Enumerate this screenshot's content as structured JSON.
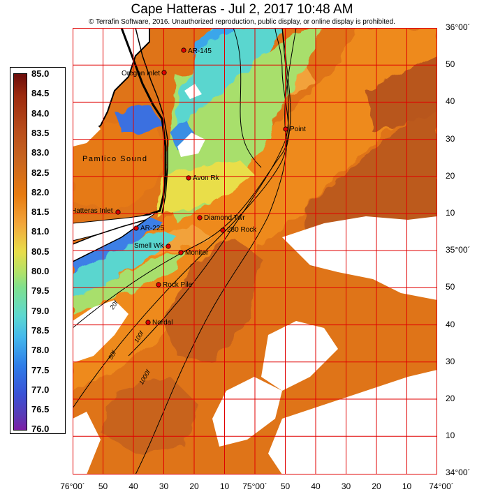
{
  "header": {
    "title": "Cape Hatteras - Jul 2, 2017 10:48 AM",
    "copyright": "© Terrafin Software,  2016.  Unauthorized reproduction, public display, or online display is prohibited."
  },
  "legend": {
    "labels": [
      "85.0",
      "84.5",
      "84.0",
      "83.5",
      "83.0",
      "82.5",
      "82.0",
      "81.5",
      "81.0",
      "80.5",
      "80.0",
      "79.5",
      "79.0",
      "78.5",
      "78.0",
      "77.5",
      "77.0",
      "76.5",
      "76.0"
    ]
  },
  "axes": {
    "lat_labels": [
      "36°00´",
      "50",
      "40",
      "30",
      "20",
      "10",
      "35°00´",
      "50",
      "40",
      "30",
      "20",
      "10",
      "34°00´"
    ],
    "lon_labels": [
      "76°00´",
      "50",
      "40",
      "30",
      "20",
      "10",
      "75°00´",
      "50",
      "40",
      "30",
      "20",
      "10",
      "74°00´"
    ]
  },
  "colors": {
    "grid": "#e00000",
    "marker": "#e00000",
    "land": "#ffffff",
    "coast": "#000000"
  },
  "map": {
    "water_label": "Pamlico Sound",
    "contours": [
      "20f",
      "50f",
      "100f",
      "1000f"
    ],
    "markers": [
      {
        "name": "AR-145"
      },
      {
        "name": "Oregon Inlet"
      },
      {
        "name": "Point"
      },
      {
        "name": "Avon Rk"
      },
      {
        "name": "Hatteras Inlet"
      },
      {
        "name": "Diamond Twr"
      },
      {
        "name": "AR-225"
      },
      {
        "name": "280 Rock"
      },
      {
        "name": "Smell Wk"
      },
      {
        "name": "Monitor"
      },
      {
        "name": "Rock Pile"
      },
      {
        "name": "Nordal"
      }
    ]
  }
}
